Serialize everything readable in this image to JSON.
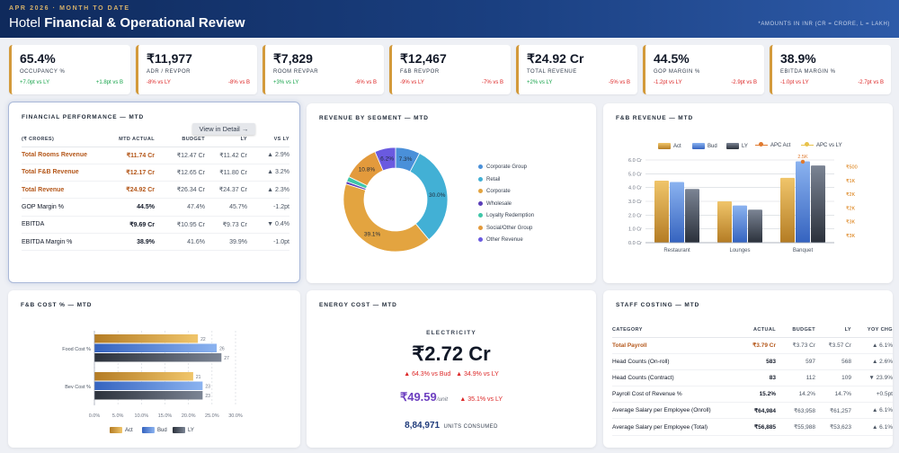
{
  "header": {
    "period": "APR 2026  ·  MONTH TO DATE",
    "title_plain": "Hotel",
    "title_bold": "Financial & Operational Review",
    "note": "*AMOUNTS IN INR (CR = CRORE, L = LAKH)"
  },
  "kpis": [
    {
      "value": "65.4%",
      "label": "OCCUPANCY %",
      "vs_ly": "+7.0pt vs LY",
      "vs_b": "+1.8pt vs B",
      "ly_dir": "pos",
      "b_dir": "pos"
    },
    {
      "value": "₹11,977",
      "label": "ADR / REVPOR",
      "vs_ly": "-8% vs LY",
      "vs_b": "-8% vs B",
      "ly_dir": "neg",
      "b_dir": "neg"
    },
    {
      "value": "₹7,829",
      "label": "ROOM REVPAR",
      "vs_ly": "+3% vs LY",
      "vs_b": "-6% vs B",
      "ly_dir": "pos",
      "b_dir": "neg"
    },
    {
      "value": "₹12,467",
      "label": "F&B REVPOR",
      "vs_ly": "-9% vs LY",
      "vs_b": "-7% vs B",
      "ly_dir": "neg",
      "b_dir": "neg"
    },
    {
      "value": "₹24.92 Cr",
      "label": "TOTAL REVENUE",
      "vs_ly": "+2% vs LY",
      "vs_b": "-5% vs B",
      "ly_dir": "pos",
      "b_dir": "neg"
    },
    {
      "value": "44.5%",
      "label": "GOP MARGIN %",
      "vs_ly": "-1.2pt vs LY",
      "vs_b": "-2.9pt vs B",
      "ly_dir": "neg",
      "b_dir": "neg"
    },
    {
      "value": "38.9%",
      "label": "EBITDA MARGIN %",
      "vs_ly": "-1.0pt vs LY",
      "vs_b": "-2.7pt vs B",
      "ly_dir": "neg",
      "b_dir": "neg"
    }
  ],
  "fin_perf": {
    "title": "FINANCIAL PERFORMANCE — MTD",
    "button": "View in Detail →",
    "columns": [
      "(₹ CRORES)",
      "MTD ACTUAL",
      "BUDGET",
      "LY",
      "VS LY"
    ],
    "rows": [
      {
        "label": "Total Rooms Revenue",
        "actual": "₹11.74 Cr",
        "budget": "₹12.47 Cr",
        "ly": "₹11.42 Cr",
        "vs": "▲ 2.9%",
        "dir": "pos",
        "orange": true
      },
      {
        "label": "Total F&B Revenue",
        "actual": "₹12.17 Cr",
        "budget": "₹12.65 Cr",
        "ly": "₹11.80 Cr",
        "vs": "▲ 3.2%",
        "dir": "pos",
        "orange": true
      },
      {
        "label": "Total Revenue",
        "actual": "₹24.92 Cr",
        "budget": "₹26.34 Cr",
        "ly": "₹24.37 Cr",
        "vs": "▲ 2.3%",
        "dir": "pos",
        "orange": true
      },
      {
        "label": "GOP Margin %",
        "actual": "44.5%",
        "budget": "47.4%",
        "ly": "45.7%",
        "vs": "-1.2pt",
        "dir": "neg",
        "orange": false
      },
      {
        "label": "EBITDA",
        "actual": "₹9.69 Cr",
        "budget": "₹10.95 Cr",
        "ly": "₹9.73 Cr",
        "vs": "▼ 0.4%",
        "dir": "neg",
        "orange": false
      },
      {
        "label": "EBITDA Margin %",
        "actual": "38.9%",
        "budget": "41.6%",
        "ly": "39.9%",
        "vs": "-1.0pt",
        "dir": "neg",
        "orange": false
      }
    ]
  },
  "staff": {
    "title": "STAFF COSTING — MTD",
    "columns": [
      "CATEGORY",
      "ACTUAL",
      "BUDGET",
      "LY",
      "YOY CHG"
    ],
    "rows": [
      {
        "label": "Total Payroll",
        "actual": "₹3.79 Cr",
        "budget": "₹3.73 Cr",
        "ly": "₹3.57 Cr",
        "chg": "▲ 6.1%",
        "dir": "neg",
        "orange": true
      },
      {
        "label": "Head Counts (On-roll)",
        "actual": "583",
        "budget": "597",
        "ly": "568",
        "chg": "▲ 2.6%",
        "dir": "neg",
        "orange": false
      },
      {
        "label": "Head Counts (Contract)",
        "actual": "83",
        "budget": "112",
        "ly": "109",
        "chg": "▼ 23.9%",
        "dir": "pos",
        "orange": false
      },
      {
        "label": "Payroll Cost of Revenue %",
        "actual": "15.2%",
        "budget": "14.2%",
        "ly": "14.7%",
        "chg": "+0.5pt",
        "dir": "neg",
        "orange": false
      },
      {
        "label": "Average Salary per Employee (Onroll)",
        "actual": "₹64,984",
        "budget": "₹63,958",
        "ly": "₹61,257",
        "chg": "▲ 6.1%",
        "dir": "neg",
        "orange": false
      },
      {
        "label": "Average Salary per Employee (Total)",
        "actual": "₹56,885",
        "budget": "₹55,988",
        "ly": "₹53,623",
        "chg": "▲ 6.1%",
        "dir": "neg",
        "orange": false
      }
    ]
  },
  "energy": {
    "title": "ENERGY COST — MTD",
    "label": "ELECTRICITY",
    "value": "₹2.72 Cr",
    "vs_bud": "▲ 64.3% vs Bud",
    "vs_ly": "▲ 34.9% vs LY",
    "per_unit": "₹49.59",
    "unit": "/unit",
    "unit_vs": "▲ 35.1% vs LY",
    "units": "8,84,971",
    "units_label": "UNITS CONSUMED"
  },
  "colors": {
    "gold": "#d39a3b",
    "blue": "#4a7fd6",
    "dark": "#374151",
    "orange": "#b4571a",
    "accent_red": "#dc2626",
    "accent_green": "#16a34a"
  },
  "chart_data": [
    {
      "type": "pie",
      "title": "REVENUE BY SEGMENT — MTD",
      "labels": [
        "Corporate Group",
        "Retail",
        "Corporate",
        "Wholesale",
        "Loyalty Redemption",
        "Social/Other Group",
        "Other Revenue"
      ],
      "values": [
        7.3,
        30.0,
        39.1,
        0.8,
        1.5,
        10.8,
        6.2
      ],
      "data_labels": [
        "7.3%",
        "30.0%",
        "39.1%",
        "",
        "",
        "10.8%",
        "6.2%"
      ],
      "colors": [
        "#4a90d9",
        "#42b0d5",
        "#e3a440",
        "#5b3fb8",
        "#3fc6a8",
        "#e39a3c",
        "#6a5ae0"
      ],
      "legend": "right"
    },
    {
      "type": "bar",
      "title": "F&B REVENUE — MTD",
      "categories": [
        "Restaurant",
        "Lounges",
        "Banquet"
      ],
      "series": [
        {
          "name": "Act",
          "values": [
            4.5,
            3.0,
            4.7
          ]
        },
        {
          "name": "Bud",
          "values": [
            4.4,
            2.7,
            5.9
          ]
        },
        {
          "name": "LY",
          "values": [
            3.9,
            2.4,
            5.6
          ]
        }
      ],
      "line_series": [
        {
          "name": "APC Act",
          "values": [
            null,
            null,
            2.5
          ]
        },
        {
          "name": "APC vs LY",
          "values": [
            null,
            null,
            null
          ]
        }
      ],
      "line_point_label": "2.5K",
      "yticks": [
        "0.0 Cr",
        "1.0 Cr",
        "2.0 Cr",
        "3.0 Cr",
        "4.0 Cr",
        "5.0 Cr",
        "6.0 Cr"
      ],
      "ylim": [
        0,
        6
      ],
      "y2ticks": [
        "₹500",
        "₹1K",
        "₹2K",
        "₹2K",
        "₹3K",
        "₹3K"
      ],
      "legend": "top"
    },
    {
      "type": "bar",
      "orientation": "horizontal",
      "title": "F&B COST % — MTD",
      "categories": [
        "Food Cost %",
        "Bev Cost %"
      ],
      "series": [
        {
          "name": "Act",
          "values": [
            22,
            21
          ]
        },
        {
          "name": "Bud",
          "values": [
            26,
            23
          ]
        },
        {
          "name": "LY",
          "values": [
            27,
            23
          ]
        }
      ],
      "xticks": [
        "0.0%",
        "5.0%",
        "10.0%",
        "15.0%",
        "20.0%",
        "25.0%",
        "30.0%"
      ],
      "xlim": [
        0,
        30
      ],
      "legend": "bottom"
    }
  ]
}
